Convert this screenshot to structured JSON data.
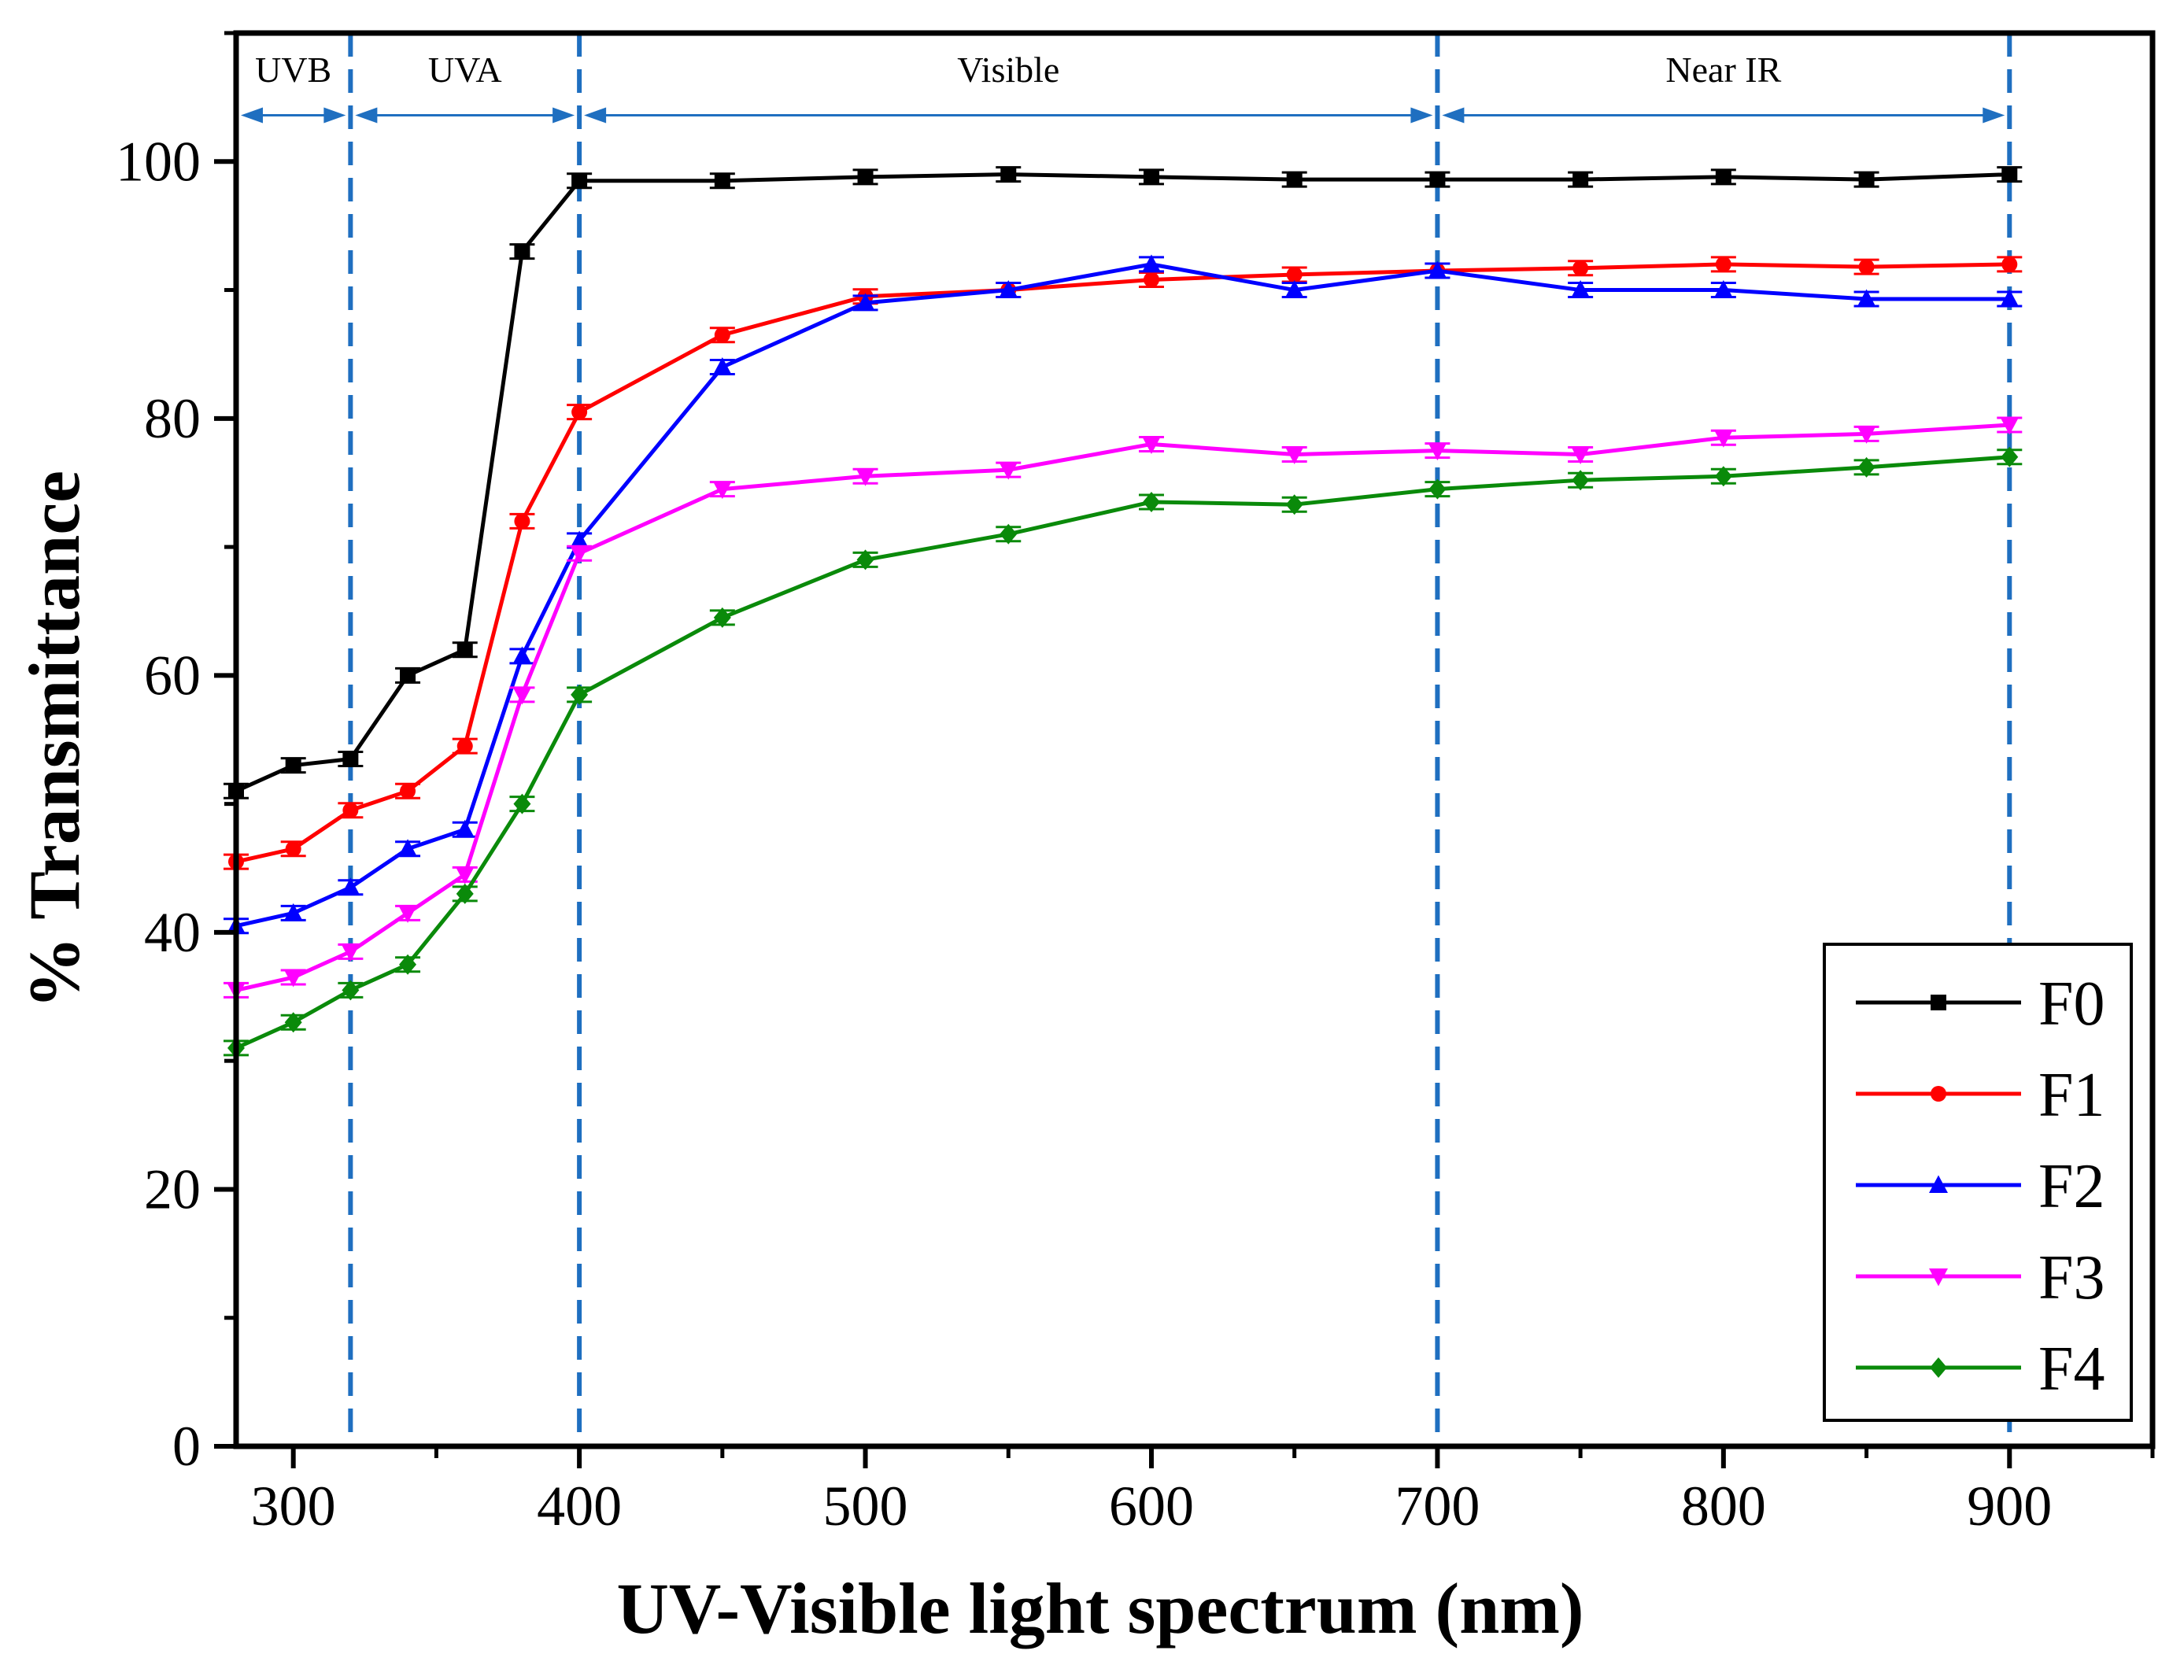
{
  "chart_data": {
    "type": "line",
    "title": "",
    "xlabel": "UV-Visible light spectrum (nm)",
    "ylabel": "% Transmittance",
    "xlim": [
      280,
      950
    ],
    "ylim": [
      0,
      110
    ],
    "xticks": [
      300,
      400,
      500,
      600,
      700,
      800,
      900
    ],
    "xtick_labels": [
      "300",
      "400",
      "500",
      "600",
      "700",
      "800",
      "900"
    ],
    "yticks": [
      0,
      20,
      40,
      60,
      80,
      100
    ],
    "ytick_labels": [
      "0",
      "20",
      "40",
      "60",
      "80",
      "100"
    ],
    "x": [
      280,
      300,
      320,
      340,
      360,
      380,
      400,
      450,
      500,
      550,
      600,
      650,
      700,
      750,
      800,
      850,
      900
    ],
    "series": [
      {
        "name": "F0",
        "color": "#000000",
        "marker": "square",
        "values": [
          51,
          53,
          53.5,
          60,
          62,
          93,
          98.5,
          98.5,
          98.8,
          99,
          98.8,
          98.6,
          98.6,
          98.6,
          98.8,
          98.6,
          99
        ]
      },
      {
        "name": "F1",
        "color": "#ff0000",
        "marker": "circle",
        "values": [
          45.5,
          46.5,
          49.5,
          51,
          54.5,
          72,
          80.5,
          86.5,
          89.5,
          90,
          90.8,
          91.2,
          91.5,
          91.7,
          92,
          91.8,
          92
        ]
      },
      {
        "name": "F2",
        "color": "#0000ff",
        "marker": "triangle-up",
        "values": [
          40.5,
          41.5,
          43.5,
          46.5,
          48,
          61.5,
          70.5,
          84,
          89,
          90,
          92,
          90,
          91.5,
          90,
          90,
          89.3,
          89.3
        ]
      },
      {
        "name": "F3",
        "color": "#ff00ff",
        "marker": "triangle-down",
        "values": [
          35.5,
          36.5,
          38.5,
          41.5,
          44.5,
          58.5,
          69.5,
          74.5,
          75.5,
          76,
          78,
          77.2,
          77.5,
          77.2,
          78.5,
          78.8,
          79.5
        ]
      },
      {
        "name": "F4",
        "color": "#0a8a0a",
        "marker": "diamond",
        "values": [
          31,
          33,
          35.5,
          37.5,
          43,
          50,
          58.5,
          64.5,
          69,
          71,
          73.5,
          73.3,
          74.5,
          75.2,
          75.5,
          76.2,
          77
        ]
      }
    ],
    "region_boundaries": [
      320,
      400,
      700,
      900
    ],
    "regions": [
      {
        "label": "UVB",
        "from": 280,
        "to": 320
      },
      {
        "label": "UVA",
        "from": 320,
        "to": 400
      },
      {
        "label": "Visible",
        "from": 400,
        "to": 700
      },
      {
        "label": "Near IR",
        "from": 700,
        "to": 900
      }
    ],
    "region_line_color": "#1f6fc0",
    "legend_position": "bottom-right"
  }
}
